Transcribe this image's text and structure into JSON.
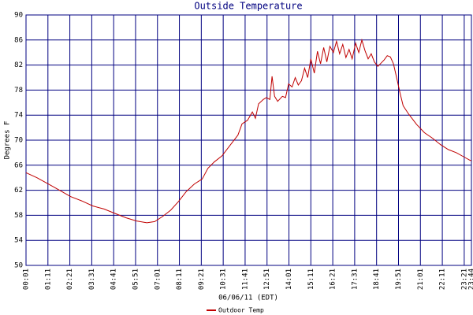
{
  "chart_data": {
    "type": "line",
    "title": "Outside Temperature",
    "xlabel": "06/06/11 (EDT)",
    "ylabel": "Degrees F",
    "x": [
      1,
      36,
      72,
      108,
      143,
      179,
      214,
      250,
      285,
      321,
      354,
      387,
      412,
      437,
      463,
      488,
      513,
      539,
      564,
      582,
      602,
      627,
      653,
      678,
      691,
      709,
      724,
      734,
      744,
      759,
      769,
      780,
      787,
      795,
      805,
      820,
      830,
      840,
      851,
      861,
      871,
      881,
      891,
      901,
      911,
      922,
      932,
      942,
      952,
      962,
      972,
      983,
      993,
      1003,
      1013,
      1023,
      1033,
      1043,
      1054,
      1064,
      1074,
      1084,
      1094,
      1104,
      1114,
      1125,
      1135,
      1145,
      1155,
      1165,
      1175,
      1185,
      1196,
      1206,
      1223,
      1249,
      1274,
      1300,
      1325,
      1350,
      1376,
      1401,
      1419,
      1424
    ],
    "series": [
      {
        "name": "Outdoor Temp",
        "color": "#c00000",
        "values": [
          64.8,
          64,
          63,
          62,
          61,
          60.3,
          59.5,
          59,
          58.3,
          57.6,
          57.1,
          56.8,
          57,
          57.8,
          58.8,
          60.2,
          61.8,
          63,
          63.8,
          65.5,
          66.5,
          67.5,
          69.2,
          70.8,
          72.6,
          73.2,
          74.5,
          73.5,
          75.8,
          76.5,
          76.8,
          76.5,
          80.2,
          77,
          76.2,
          77,
          76.8,
          79,
          78.5,
          80,
          78.8,
          79.5,
          81.5,
          80,
          83,
          80.7,
          84.2,
          82.2,
          84.8,
          82.5,
          85,
          84,
          85.8,
          83.8,
          85.3,
          83.2,
          84.5,
          83,
          85.5,
          84,
          86,
          84.3,
          83,
          83.8,
          82.5,
          81.8,
          82.3,
          82.8,
          83.5,
          83.3,
          82.2,
          80,
          77.5,
          75.5,
          74.2,
          72.5,
          71.2,
          70.3,
          69.3,
          68.5,
          68,
          67.3,
          66.8,
          66.7
        ]
      }
    ],
    "xlim": [
      1,
      1424
    ],
    "xticks": [
      {
        "value": 1,
        "label": "00:01"
      },
      {
        "value": 71,
        "label": "01:11"
      },
      {
        "value": 141,
        "label": "02:21"
      },
      {
        "value": 211,
        "label": "03:31"
      },
      {
        "value": 281,
        "label": "04:41"
      },
      {
        "value": 351,
        "label": "05:51"
      },
      {
        "value": 421,
        "label": "07:01"
      },
      {
        "value": 491,
        "label": "08:11"
      },
      {
        "value": 561,
        "label": "09:21"
      },
      {
        "value": 631,
        "label": "10:31"
      },
      {
        "value": 701,
        "label": "11:41"
      },
      {
        "value": 771,
        "label": "12:51"
      },
      {
        "value": 841,
        "label": "14:01"
      },
      {
        "value": 911,
        "label": "15:11"
      },
      {
        "value": 981,
        "label": "16:21"
      },
      {
        "value": 1051,
        "label": "17:31"
      },
      {
        "value": 1121,
        "label": "18:41"
      },
      {
        "value": 1191,
        "label": "19:51"
      },
      {
        "value": 1261,
        "label": "21:01"
      },
      {
        "value": 1331,
        "label": "22:11"
      },
      {
        "value": 1401,
        "label": "23:21"
      },
      {
        "value": 1424,
        "label": "23:44"
      }
    ],
    "ylim": [
      50,
      90
    ],
    "yticks": [
      50,
      54,
      58,
      62,
      66,
      70,
      74,
      78,
      82,
      86,
      90
    ],
    "grid": true,
    "grid_color": "#000080",
    "legend": "bottom"
  }
}
